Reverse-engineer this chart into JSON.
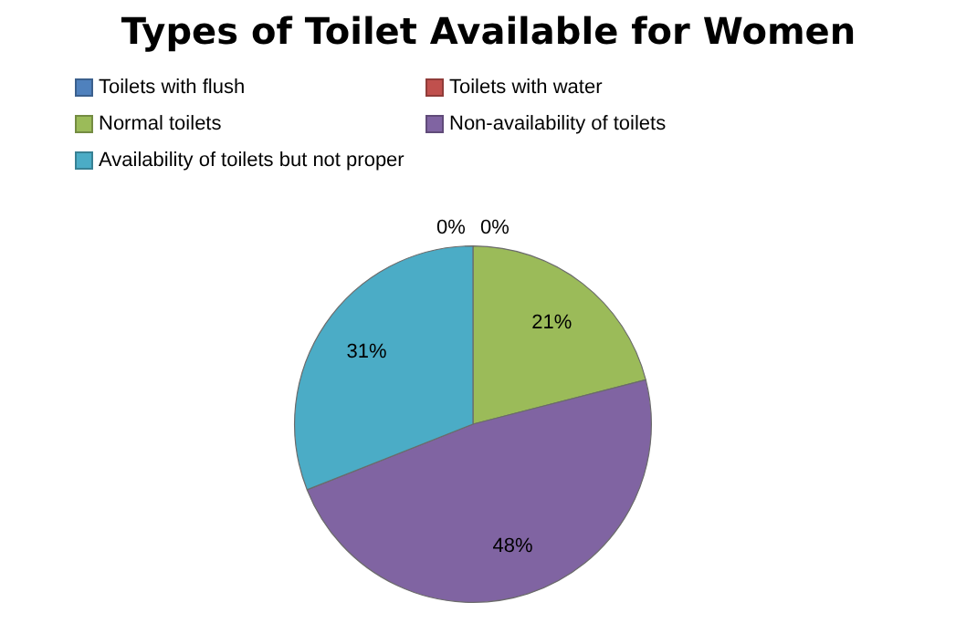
{
  "chart_data": {
    "type": "pie",
    "title": "Types of Toilet Available for Women",
    "categories": [
      "Toilets with flush",
      "Toilets with water",
      "Normal toilets",
      "Non-availability of toilets",
      "Availability of toilets but not proper"
    ],
    "values": [
      0,
      0,
      21,
      48,
      31
    ],
    "colors": [
      "#4f81bd",
      "#c0504d",
      "#9bbb59",
      "#8064a2",
      "#4bacc6"
    ],
    "value_labels": [
      "0%",
      "0%",
      "21%",
      "48%",
      "31%"
    ],
    "legend": "top"
  }
}
